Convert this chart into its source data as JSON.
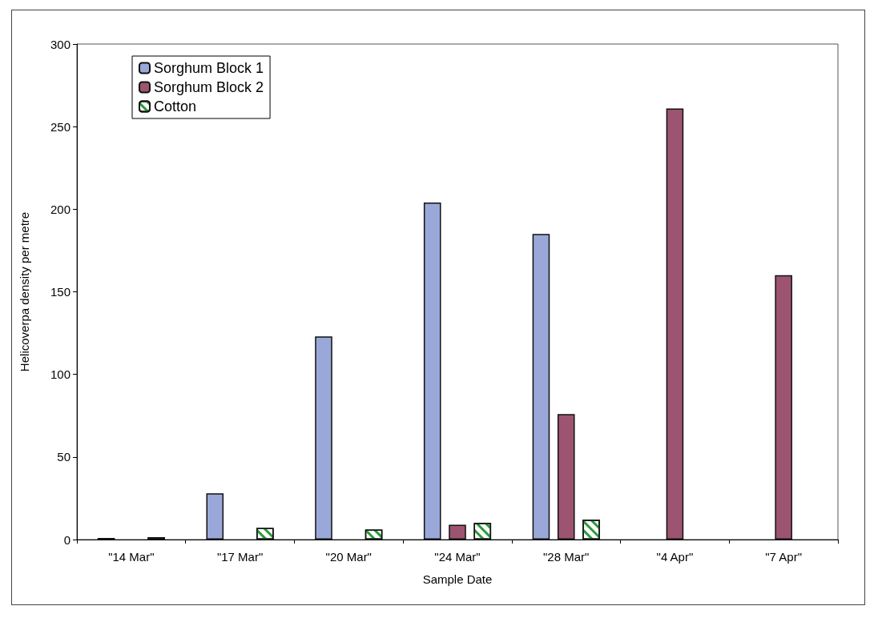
{
  "chart_data": {
    "type": "bar",
    "xlabel": "Sample Date",
    "ylabel": "Helicoverpa density per metre",
    "categories": [
      "\"14 Mar\"",
      "\"17 Mar\"",
      "\"20 Mar\"",
      "\"24 Mar\"",
      "\"28 Mar\"",
      "\"4 Apr\"",
      "\"7 Apr\""
    ],
    "series": [
      {
        "name": "Sorghum Block 1",
        "color": "#99a8d8",
        "values": [
          1,
          28,
          123,
          204,
          185,
          null,
          null
        ]
      },
      {
        "name": "Sorghum Block 2",
        "color": "#9c5470",
        "values": [
          null,
          null,
          null,
          9,
          76,
          261,
          160
        ]
      },
      {
        "name": "Cotton",
        "color": "#ffffff",
        "values": [
          1.5,
          7,
          6,
          10,
          12,
          null,
          null
        ]
      }
    ],
    "ylim": [
      0,
      300
    ],
    "yticks": [
      0,
      50,
      100,
      150,
      200,
      250,
      300
    ],
    "grid": false,
    "legend": "top left"
  }
}
